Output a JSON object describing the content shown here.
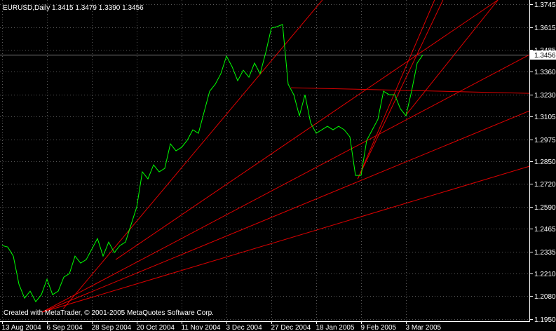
{
  "chart_data": {
    "type": "line",
    "title": "EURUSD,Daily  1.3415 1.3479 1.3390 1.3456",
    "footer": "Created with MetaTrader, © 2001-2005 MetaQuotes Software Corp.",
    "categories": [
      "13 Aug 2004",
      null,
      null,
      null,
      null,
      null,
      null,
      null,
      "6 Sep 2004",
      null,
      null,
      null,
      null,
      null,
      null,
      null,
      "28 Sep 2004",
      null,
      null,
      null,
      null,
      null,
      null,
      null,
      "20 Oct 2004",
      null,
      null,
      null,
      null,
      null,
      null,
      null,
      "11 Nov 2004",
      null,
      null,
      null,
      null,
      null,
      null,
      null,
      "3 Dec 2004",
      null,
      null,
      null,
      null,
      null,
      null,
      null,
      "27 Dec 2004",
      null,
      null,
      null,
      null,
      null,
      null,
      null,
      "18 Jan 2005",
      null,
      null,
      null,
      null,
      null,
      null,
      null,
      "9 Feb 2005",
      null,
      null,
      null,
      null,
      null,
      null,
      null,
      "3 Mar 2005",
      null,
      null,
      null
    ],
    "series": [
      {
        "name": "EURUSD",
        "color": "#00ff00",
        "values": [
          1.2369,
          1.2361,
          1.2309,
          1.2149,
          1.2069,
          1.2109,
          1.2049,
          1.2089,
          1.2177,
          1.2089,
          1.2109,
          1.2189,
          1.2209,
          1.2309,
          1.2269,
          1.2289,
          1.2349,
          1.2409,
          1.2309,
          1.2389,
          1.2329,
          1.2369,
          1.2389,
          1.2489,
          1.2589,
          1.2789,
          1.2749,
          1.2829,
          1.2789,
          1.2809,
          1.2949,
          1.2909,
          1.2929,
          1.2969,
          1.3029,
          1.3009,
          1.3129,
          1.3249,
          1.3289,
          1.3349,
          1.3449,
          1.3389,
          1.3309,
          1.3369,
          1.3329,
          1.3409,
          1.3349,
          1.3469,
          1.3609,
          1.3617,
          1.3629,
          1.3289,
          1.3229,
          1.3109,
          1.3229,
          1.3069,
          1.3009,
          1.3029,
          1.3049,
          1.3029,
          1.3049,
          1.3029,
          1.2989,
          1.2769,
          1.2769,
          1.2969,
          1.3029,
          1.3089,
          1.3249,
          1.3229,
          1.3229,
          1.3149,
          1.3109,
          1.3249,
          1.3409,
          1.3456
        ]
      }
    ],
    "current_price": 1.3456,
    "current_price_color": "#808080",
    "trend_line_color": "#e00000",
    "trend_lines": [
      {
        "x": [
          10.9,
          57.1
        ],
        "price": [
          1.2009,
          1.3769
        ]
      },
      {
        "x": [
          7.1,
          94
        ],
        "price": [
          1.1989,
          1.2821
        ]
      },
      {
        "x": [
          7.1,
          94
        ],
        "price": [
          1.1989,
          1.3137
        ]
      },
      {
        "x": [
          7.1,
          94
        ],
        "price": [
          1.1989,
          1.3457
        ]
      },
      {
        "x": [
          20.25,
          88.4
        ],
        "price": [
          1.2289,
          1.3769
        ]
      },
      {
        "x": [
          63.4,
          77.1
        ],
        "price": [
          1.2749,
          1.3769
        ]
      },
      {
        "x": [
          63.4,
          78.6
        ],
        "price": [
          1.2749,
          1.3769
        ]
      },
      {
        "x": [
          71.9,
          88.4
        ],
        "price": [
          1.3109,
          1.3769
        ]
      },
      {
        "x": [
          51.5,
          94
        ],
        "price": [
          1.3269,
          1.3237
        ]
      }
    ],
    "ylim": [
      1.1938,
      1.3769
    ],
    "yticks": [
      {
        "value": 1.195,
        "label": "1.1950"
      },
      {
        "value": 1.208,
        "label": "1.2080"
      },
      {
        "value": 1.221,
        "label": "1.2210"
      },
      1.2335,
      1.2465,
      {
        "value": 1.259,
        "label": "1.2590"
      },
      {
        "value": 1.272,
        "label": "1.2720"
      },
      {
        "value": 1.285,
        "label": "1.2850"
      },
      1.2975,
      1.3105,
      {
        "value": 1.323,
        "label": "1.3230"
      },
      {
        "value": 1.336,
        "label": "1.3360"
      },
      1.3485,
      1.3615,
      1.3745
    ],
    "grid": true
  }
}
